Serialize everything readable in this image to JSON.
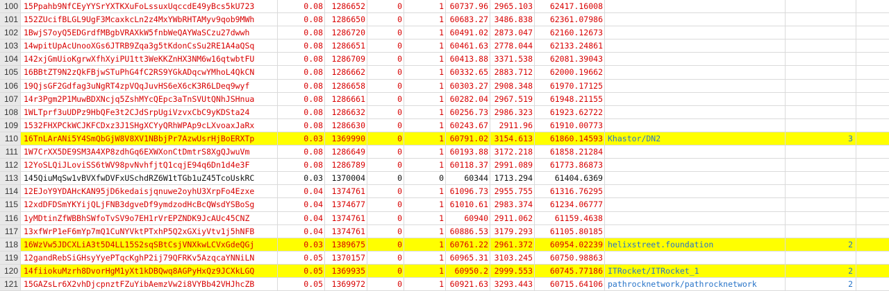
{
  "rows": [
    {
      "n": "100",
      "addr": "15Ppahb9NfCEyYYSrYXTKXuFoLssuxUqccdE49yBcs5kU723",
      "v1": "0.08",
      "v2": "1286652",
      "v3": "0",
      "v4": "1",
      "v5": "60737.96",
      "v6": "2965.103",
      "v7": "62417.16008",
      "name": "",
      "count": "",
      "hl": false,
      "black": false
    },
    {
      "n": "101",
      "addr": "152ZUcifBLGL9UgF3McaxkcLn2z4MxYWbRHTAMyv9qob9MWh",
      "v1": "0.08",
      "v2": "1286650",
      "v3": "0",
      "v4": "1",
      "v5": "60683.27",
      "v6": "3486.838",
      "v7": "62361.07986",
      "name": "",
      "count": "",
      "hl": false,
      "black": false
    },
    {
      "n": "102",
      "addr": "1BwjS7oyQ5EDGrdfMBgbVRAXkW5fnbWeQAYWaSCzu27dwwh",
      "v1": "0.08",
      "v2": "1286720",
      "v3": "0",
      "v4": "1",
      "v5": "60491.02",
      "v6": "2873.047",
      "v7": "62160.12673",
      "name": "",
      "count": "",
      "hl": false,
      "black": false
    },
    {
      "n": "103",
      "addr": "14wpitUpAcUnooXGs6JTRB9Zqa3g5tKdonCsSu2RE1A4aQSq",
      "v1": "0.08",
      "v2": "1286651",
      "v3": "0",
      "v4": "1",
      "v5": "60461.63",
      "v6": "2778.044",
      "v7": "62133.24861",
      "name": "",
      "count": "",
      "hl": false,
      "black": false
    },
    {
      "n": "104",
      "addr": "142xjGmUioKgrwXfhXyiPU1tt3WeKKZnHX3NM6w16qtwbtFU",
      "v1": "0.08",
      "v2": "1286709",
      "v3": "0",
      "v4": "1",
      "v5": "60413.88",
      "v6": "3371.538",
      "v7": "62081.39043",
      "name": "",
      "count": "",
      "hl": false,
      "black": false
    },
    {
      "n": "105",
      "addr": "16BBtZT9N2zQkFBjwSTuPhG4fC2RS9YGkADqcwYMhoL4QkCN",
      "v1": "0.08",
      "v2": "1286662",
      "v3": "0",
      "v4": "1",
      "v5": "60332.65",
      "v6": "2883.712",
      "v7": "62000.19662",
      "name": "",
      "count": "",
      "hl": false,
      "black": false
    },
    {
      "n": "106",
      "addr": "19QjsGF2Gdfag3uNgRT4zpVQqJuvHS6eX6cK3R6LDeq9wyf",
      "v1": "0.08",
      "v2": "1286658",
      "v3": "0",
      "v4": "1",
      "v5": "60303.27",
      "v6": "2908.348",
      "v7": "61970.17125",
      "name": "",
      "count": "",
      "hl": false,
      "black": false
    },
    {
      "n": "107",
      "addr": "14r3Pgm2P1MuwBDXNcjq5ZshMYcQEpc3aTnSVUtQNhJSHnua",
      "v1": "0.08",
      "v2": "1286661",
      "v3": "0",
      "v4": "1",
      "v5": "60282.04",
      "v6": "2967.519",
      "v7": "61948.21155",
      "name": "",
      "count": "",
      "hl": false,
      "black": false
    },
    {
      "n": "108",
      "addr": "1WLTprf3uUDPz9HbQFe3t2CJdSrpUgiVzvxCbC9yKDSta24",
      "v1": "0.08",
      "v2": "1286632",
      "v3": "0",
      "v4": "1",
      "v5": "60256.73",
      "v6": "2986.323",
      "v7": "61923.62722",
      "name": "",
      "count": "",
      "hl": false,
      "black": false
    },
    {
      "n": "109",
      "addr": "1532FHXPCkWCJKFCDxz3J1SHgXCYyQRhWPAp9cLXvoaxJaRx",
      "v1": "0.08",
      "v2": "1286630",
      "v3": "0",
      "v4": "1",
      "v5": "60243.67",
      "v6": "2911.96",
      "v7": "61910.00773",
      "name": "",
      "count": "",
      "hl": false,
      "black": false
    },
    {
      "n": "110",
      "addr": "16TnLArANi5Y4SmQbGjW8V8XV1NBbjPr7AzwUsrHjBoERXTp",
      "v1": "0.03",
      "v2": "1369990",
      "v3": "0",
      "v4": "1",
      "v5": "60791.02",
      "v6": "3154.613",
      "v7": "61860.14593",
      "name": "Khastor/DN2",
      "count": "3",
      "hl": true,
      "black": false
    },
    {
      "n": "111",
      "addr": "1W7CrXX5DE9SM3A4XP8zdhGq6EXWXonCtDmtrS8XgQJwuVm",
      "v1": "0.08",
      "v2": "1286649",
      "v3": "0",
      "v4": "1",
      "v5": "60193.88",
      "v6": "3172.218",
      "v7": "61858.21284",
      "name": "",
      "count": "",
      "hl": false,
      "black": false
    },
    {
      "n": "112",
      "addr": "12YoSLQiJLoviSS6tWV98pvNvhfjtQ1cqjE94q6Dn1d4e3F",
      "v1": "0.08",
      "v2": "1286789",
      "v3": "0",
      "v4": "1",
      "v5": "60118.37",
      "v6": "2991.089",
      "v7": "61773.86873",
      "name": "",
      "count": "",
      "hl": false,
      "black": false
    },
    {
      "n": "113",
      "addr": "145QiuMqSw1vBVXfwDVFxUSchdRZ6W1tTGb1uZ45TcoUskRC",
      "v1": "0.03",
      "v2": "1370004",
      "v3": "0",
      "v4": "0",
      "v5": "60344",
      "v6": "1713.294",
      "v7": "61404.6369",
      "name": "",
      "count": "",
      "hl": false,
      "black": true
    },
    {
      "n": "114",
      "addr": "12EJoY9YDAHcKAN95jD6kedaisjqnuwe2oyhU3XrpFo4Ezxe",
      "v1": "0.04",
      "v2": "1374761",
      "v3": "0",
      "v4": "1",
      "v5": "61096.73",
      "v6": "2955.755",
      "v7": "61316.76295",
      "name": "",
      "count": "",
      "hl": false,
      "black": false
    },
    {
      "n": "115",
      "addr": "12xdDFDSmYKYijQLjFNB3dgveDf9ymdzodHcBcQWsdYSBoSg",
      "v1": "0.04",
      "v2": "1374677",
      "v3": "0",
      "v4": "1",
      "v5": "61010.61",
      "v6": "2983.374",
      "v7": "61234.06777",
      "name": "",
      "count": "",
      "hl": false,
      "black": false
    },
    {
      "n": "116",
      "addr": "1yMDtinZfWBBhSWfoTvSV9o7EH1rVrEPZNDK9JcAUc45CNZ",
      "v1": "0.04",
      "v2": "1374761",
      "v3": "0",
      "v4": "1",
      "v5": "60940",
      "v6": "2911.062",
      "v7": "61159.4638",
      "name": "",
      "count": "",
      "hl": false,
      "black": false
    },
    {
      "n": "117",
      "addr": "13xfWrP1eF6mYp7mQ1CuNYVktPTxhP5Q2xGXiyVtv1j5hNFB",
      "v1": "0.04",
      "v2": "1374761",
      "v3": "0",
      "v4": "1",
      "v5": "60886.53",
      "v6": "3179.293",
      "v7": "61105.80185",
      "name": "",
      "count": "",
      "hl": false,
      "black": false
    },
    {
      "n": "118",
      "addr": "16WzVw5JDCXLiA3t5D4LL15S2sqSBtCsjVNXkwLCVxGdeQGj",
      "v1": "0.03",
      "v2": "1389675",
      "v3": "0",
      "v4": "1",
      "v5": "60761.22",
      "v6": "2961.372",
      "v7": "60954.02239",
      "name": "helixstreet.foundation",
      "count": "2",
      "hl": true,
      "black": false
    },
    {
      "n": "119",
      "addr": "12gandRebSiGHsyYyePTqcKghP2ij79QFRKv5AzqcaYNNiLN",
      "v1": "0.05",
      "v2": "1370157",
      "v3": "0",
      "v4": "1",
      "v5": "60965.31",
      "v6": "3103.245",
      "v7": "60750.98863",
      "name": "",
      "count": "",
      "hl": false,
      "black": false
    },
    {
      "n": "120",
      "addr": "14fiiokuMzrh8DvorHgM1yXt1kDBQwq8AGPyHxQz9JCXkLGQ",
      "v1": "0.05",
      "v2": "1369935",
      "v3": "0",
      "v4": "1",
      "v5": "60950.2",
      "v6": "2999.553",
      "v7": "60745.77186",
      "name": "ITRocket/ITRocket_1",
      "count": "2",
      "hl": true,
      "black": false
    },
    {
      "n": "121",
      "addr": "15GAZsLr6X2vhDjcpnztFZuYibAemzVw2i8VYBb42VHJhcZB",
      "v1": "0.05",
      "v2": "1369972",
      "v3": "0",
      "v4": "1",
      "v5": "60921.63",
      "v6": "3293.443",
      "v7": "60715.64106",
      "name": "pathrocknetwork/pathrocknetwork",
      "count": "2",
      "hl": false,
      "black": false
    }
  ]
}
